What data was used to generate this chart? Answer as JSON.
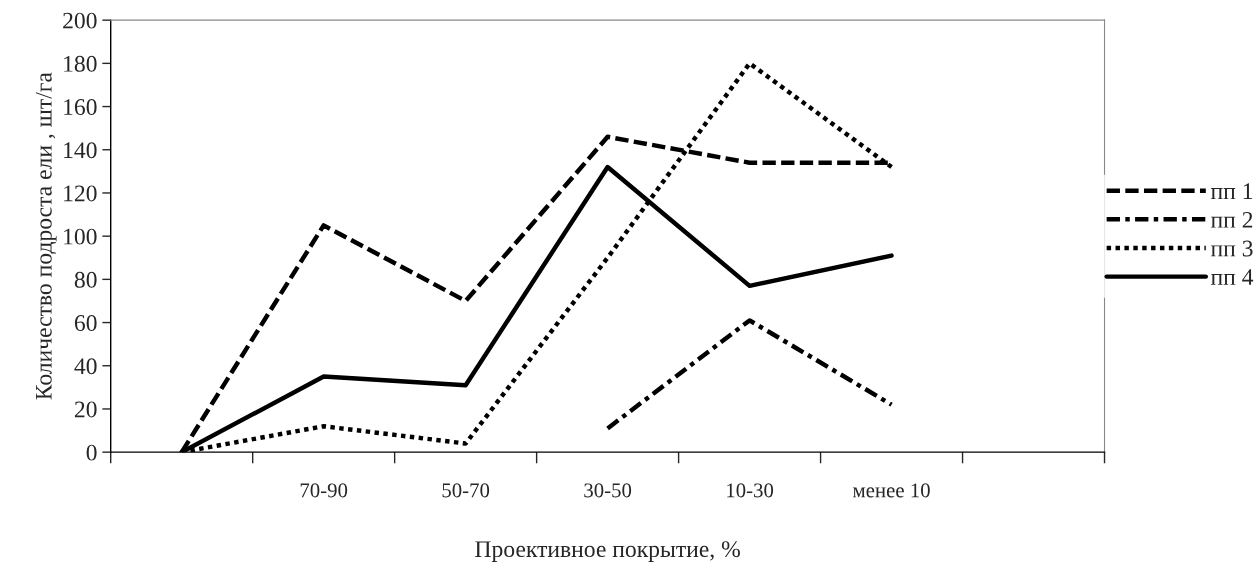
{
  "chart_data": {
    "type": "line",
    "xlabel": "Проективное покрытие, %",
    "ylabel": "Количество подроста ели , шт/га",
    "categories": [
      null,
      "70-90",
      "50-70",
      "30-50",
      "10-30",
      "менее 10",
      null
    ],
    "ylim": [
      0,
      200
    ],
    "yticks": [
      0,
      20,
      40,
      60,
      80,
      100,
      120,
      140,
      160,
      180,
      200
    ],
    "grid": false,
    "legend": "right",
    "marker": "none",
    "series": [
      {
        "name": "пп 1",
        "color": "#000000",
        "line_style": "dashed",
        "values": [
          0,
          105,
          70,
          146,
          134,
          134,
          null
        ]
      },
      {
        "name": "пп 2",
        "color": "#000000",
        "line_style": "dashdot",
        "values": [
          null,
          null,
          null,
          11,
          61,
          22,
          null
        ]
      },
      {
        "name": "пп 3",
        "color": "#000000",
        "line_style": "dotted",
        "values": [
          0,
          12,
          4,
          90,
          180,
          132,
          null
        ]
      },
      {
        "name": "пп 4",
        "color": "#000000",
        "line_style": "solid",
        "values": [
          0,
          35,
          31,
          132,
          77,
          91,
          null
        ]
      }
    ]
  }
}
